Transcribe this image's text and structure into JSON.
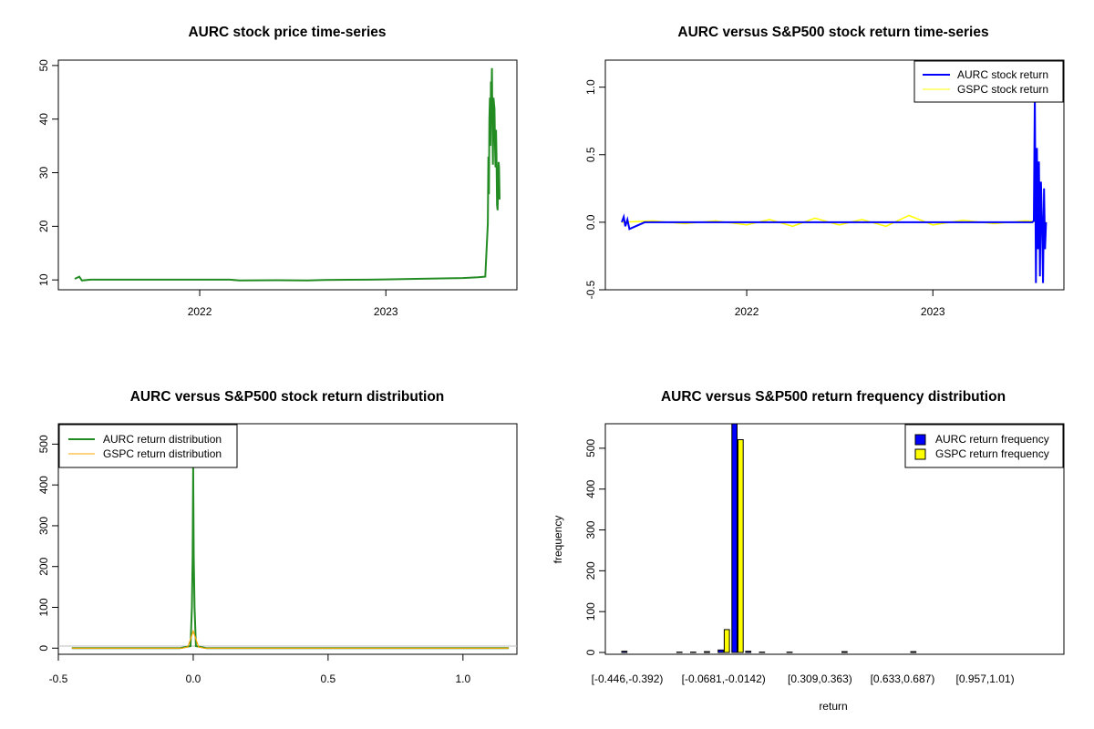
{
  "chart_data": [
    {
      "type": "line",
      "title": "AURC stock price time-series",
      "x_ticks": [
        "2022",
        "2023"
      ],
      "y_ticks": [
        "10",
        "20",
        "30",
        "40",
        "50"
      ],
      "ylim": [
        8.5,
        51
      ],
      "colors": {
        "line": "#228B22"
      },
      "series": [
        {
          "x": [
            "2021-05-01",
            "2021-05-10",
            "2021-05-15",
            "2021-06-01",
            "2021-09-01",
            "2021-12-01",
            "2022-03-01",
            "2022-03-20",
            "2022-06-01",
            "2022-08-01",
            "2022-09-01",
            "2022-12-01",
            "2023-01-01",
            "2023-03-01",
            "2023-06-01",
            "2023-07-01",
            "2023-07-15",
            "2023-07-20",
            "2023-07-21",
            "2023-07-22",
            "2023-07-23",
            "2023-07-24",
            "2023-07-25",
            "2023-07-26",
            "2023-07-27",
            "2023-07-28",
            "2023-07-29",
            "2023-07-30",
            "2023-07-31",
            "2023-08-01",
            "2023-08-02",
            "2023-08-03",
            "2023-08-04",
            "2023-08-05",
            "2023-08-06",
            "2023-08-07",
            "2023-08-08",
            "2023-08-09",
            "2023-08-10",
            "2023-08-11",
            "2023-08-12"
          ],
          "values": [
            10.2,
            10.6,
            9.9,
            10.05,
            10.05,
            10.05,
            10.05,
            9.9,
            9.95,
            9.9,
            10.0,
            10.05,
            10.1,
            10.2,
            10.35,
            10.5,
            10.6,
            20.5,
            33,
            26,
            40,
            44,
            35,
            47,
            43,
            49.5,
            38,
            31.5,
            44,
            43,
            42,
            35,
            31,
            38,
            33,
            24,
            23,
            27,
            32,
            31,
            25
          ]
        }
      ]
    },
    {
      "type": "line",
      "title": "AURC versus S&P500 stock return time-series",
      "x_ticks": [
        "2022",
        "2023"
      ],
      "y_ticks": [
        "-0.5",
        "0.0",
        "0.5",
        "1.0"
      ],
      "ylim": [
        -0.5,
        1.2
      ],
      "legend": "top-right",
      "series": [
        {
          "name": "AURC stock return",
          "color": "#0000FF",
          "x": [
            "2021-05-01",
            "2021-05-05",
            "2021-05-08",
            "2021-05-12",
            "2021-05-16",
            "2021-06-15",
            "2021-09-01",
            "2021-12-01",
            "2022-03-01",
            "2022-06-01",
            "2022-09-01",
            "2022-12-01",
            "2023-03-01",
            "2023-06-01",
            "2023-07-15",
            "2023-07-18",
            "2023-07-20",
            "2023-07-22",
            "2023-07-24",
            "2023-07-26",
            "2023-07-28",
            "2023-07-30",
            "2023-08-01",
            "2023-08-03",
            "2023-08-05",
            "2023-08-07",
            "2023-08-09",
            "2023-08-11"
          ],
          "values": [
            0.0,
            0.04,
            -0.03,
            0.02,
            -0.05,
            0.0,
            0.0,
            0.0,
            0.0,
            0.0,
            0.0,
            0.0,
            0.0,
            0.0,
            0.0,
            0.01,
            0.95,
            -0.45,
            0.55,
            -0.2,
            0.45,
            -0.4,
            0.3,
            0.0,
            -0.45,
            0.25,
            -0.2,
            0.0
          ]
        },
        {
          "name": "GSPC stock return",
          "color": "#FFFF00",
          "x": [
            "2021-05-01",
            "2021-07-01",
            "2021-09-01",
            "2021-11-01",
            "2022-01-01",
            "2022-02-15",
            "2022-04-01",
            "2022-05-15",
            "2022-07-01",
            "2022-08-15",
            "2022-10-01",
            "2022-11-15",
            "2023-01-01",
            "2023-03-01",
            "2023-05-01",
            "2023-07-01",
            "2023-08-11"
          ],
          "values": [
            0.0,
            0.01,
            -0.01,
            0.01,
            -0.02,
            0.02,
            -0.03,
            0.03,
            -0.02,
            0.02,
            -0.03,
            0.05,
            -0.02,
            0.015,
            -0.01,
            0.01,
            0.0
          ]
        }
      ]
    },
    {
      "type": "line",
      "title": "AURC versus S&P500 stock return distribution",
      "x_ticks": [
        "-0.5",
        "0.0",
        "0.5",
        "1.0"
      ],
      "y_ticks": [
        "0",
        "100",
        "200",
        "300",
        "400",
        "500"
      ],
      "xlim": [
        -0.5,
        1.2
      ],
      "ylim": [
        -15,
        550
      ],
      "legend": "top-left",
      "series": [
        {
          "name": "AURC return distribution",
          "color": "#228B22",
          "x": [
            -0.45,
            -0.05,
            -0.01,
            -0.005,
            -0.002,
            0.0,
            0.002,
            0.005,
            0.01,
            0.05,
            1.17
          ],
          "values": [
            0,
            0,
            5,
            100,
            225,
            445,
            225,
            100,
            5,
            0,
            0
          ]
        },
        {
          "name": "GSPC return distribution",
          "color": "#FFA500",
          "x": [
            -0.45,
            -0.04,
            -0.02,
            -0.01,
            0.0,
            0.01,
            0.02,
            0.04,
            1.17
          ],
          "values": [
            0,
            0,
            3,
            22,
            42,
            22,
            3,
            0,
            0
          ]
        }
      ]
    },
    {
      "type": "bar",
      "title": "AURC versus S&P500 return frequency distribution",
      "xlabel": "return",
      "ylabel": "frequency",
      "x_tick_labels": [
        "[-0.446,-0.392)",
        "[-0.0681,-0.0142)",
        "[0.309,0.363)",
        "[0.633,0.687)",
        "[0.957,1.01)"
      ],
      "x_tick_bin_index": [
        0,
        7,
        14,
        20,
        26
      ],
      "y_ticks": [
        "0",
        "100",
        "200",
        "300",
        "400",
        "500"
      ],
      "ylim": [
        0,
        560
      ],
      "legend": "top-right",
      "bin_count": 31,
      "series": [
        {
          "name": "AURC return frequency",
          "color": "#0000FF",
          "values": [
            3,
            0,
            0,
            0,
            1,
            1,
            2,
            6,
            560,
            3,
            1,
            0,
            1,
            0,
            0,
            0,
            2,
            0,
            0,
            0,
            0,
            2,
            0,
            0,
            0,
            0,
            0,
            0,
            0,
            0,
            0
          ]
        },
        {
          "name": "GSPC return frequency",
          "color": "#FFFF00",
          "values": [
            0,
            0,
            0,
            0,
            0,
            0,
            0,
            56,
            521,
            0,
            0,
            0,
            0,
            0,
            0,
            0,
            0,
            0,
            0,
            0,
            0,
            0,
            0,
            0,
            0,
            0,
            0,
            0,
            0,
            0,
            0
          ]
        }
      ]
    }
  ]
}
